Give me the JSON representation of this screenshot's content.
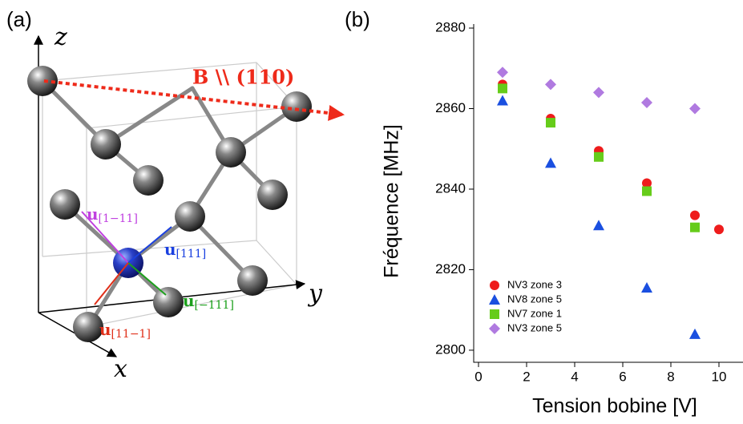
{
  "panel_labels": [
    "(a)",
    "(b)"
  ],
  "diagram": {
    "axes": {
      "z": "z",
      "y": "y",
      "x": "x"
    },
    "field_label": "B \\\\ (110)",
    "vectors": [
      {
        "symbol": "u",
        "sub": "[1−11]"
      },
      {
        "symbol": "u",
        "sub": "[111]"
      },
      {
        "symbol": "u",
        "sub": "[−111]"
      },
      {
        "symbol": "u",
        "sub": "[11−1]"
      }
    ]
  },
  "chart_data": {
    "type": "scatter",
    "xlabel": "Tension bobine [V]",
    "ylabel": "Fréquence [MHz]",
    "xlim": [
      -0.2,
      11
    ],
    "ylim": [
      2797,
      2881
    ],
    "xticks": [
      0,
      2,
      4,
      6,
      8,
      10
    ],
    "yticks": [
      2800,
      2820,
      2840,
      2860,
      2880
    ],
    "legend": "lower left",
    "series": [
      {
        "name": "NV3 zone 3",
        "color": "#ee1c1c",
        "marker": "circle",
        "x": [
          1,
          3,
          5,
          7,
          9,
          10
        ],
        "values": [
          2866,
          2857.5,
          2849.5,
          2841.5,
          2833.5,
          2830
        ]
      },
      {
        "name": "NV8 zone 5",
        "color": "#1a4fe0",
        "marker": "triangle",
        "x": [
          1,
          3,
          5,
          7,
          9
        ],
        "values": [
          2862,
          2846.5,
          2831,
          2815.5,
          2804
        ]
      },
      {
        "name": "NV7 zone 1",
        "color": "#66cc1a",
        "marker": "square",
        "x": [
          1,
          3,
          5,
          7,
          9
        ],
        "values": [
          2865,
          2856.5,
          2848,
          2839.5,
          2830.5
        ]
      },
      {
        "name": "NV3 zone 5",
        "color": "#b07ae0",
        "marker": "diamond",
        "x": [
          1,
          3,
          5,
          7,
          9
        ],
        "values": [
          2869,
          2866,
          2864,
          2861.5,
          2860
        ]
      }
    ]
  }
}
